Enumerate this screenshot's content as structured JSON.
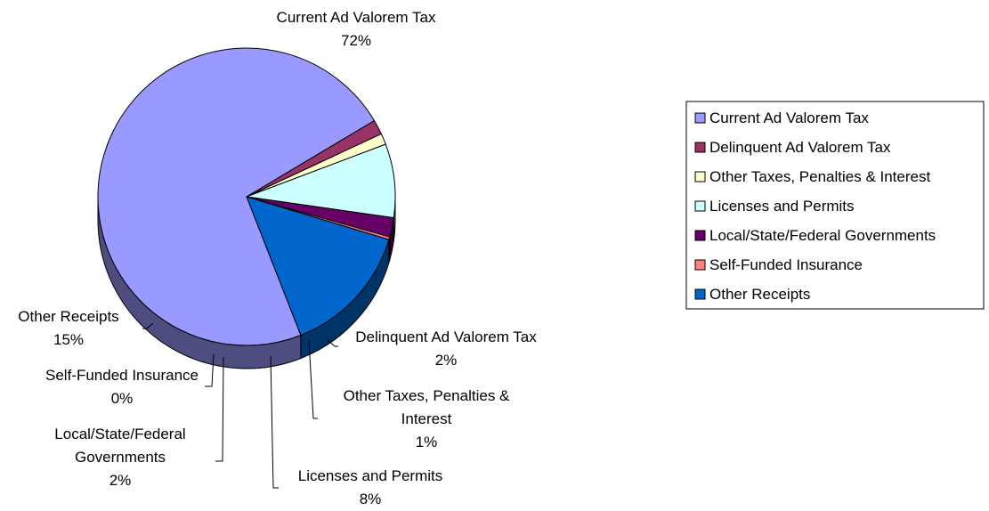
{
  "chart_data": {
    "type": "pie",
    "title": "",
    "legend_position": "right",
    "series": [
      {
        "name": "Current Ad Valorem Tax",
        "label": "Current Ad Valorem Tax",
        "pct_label": "72%",
        "value": 72.4,
        "color": "#9999ff"
      },
      {
        "name": "Delinquent Ad Valorem Tax",
        "label": "Delinquent Ad Valorem Tax",
        "pct_label": "2%",
        "value": 1.6,
        "color": "#993366"
      },
      {
        "name": "Other Taxes, Penalties & Interest",
        "label": "Other Taxes, Penalties & Interest",
        "pct_label": "1%",
        "value": 1.2,
        "color": "#ffffcc"
      },
      {
        "name": "Licenses and Permits",
        "label": "Licenses and Permits",
        "pct_label": "8%",
        "value": 8.0,
        "color": "#ccffff"
      },
      {
        "name": "Local/State/Federal Governments",
        "label": "Local/State/Federal Governments",
        "pct_label": "2%",
        "value": 2.1,
        "color": "#660066"
      },
      {
        "name": "Self-Funded Insurance",
        "label": "Self-Funded Insurance",
        "pct_label": "0%",
        "value": 0.3,
        "color": "#ff8080"
      },
      {
        "name": "Other Receipts",
        "label": "Other Receipts",
        "pct_label": "15%",
        "value": 14.4,
        "color": "#0066cc"
      }
    ]
  }
}
